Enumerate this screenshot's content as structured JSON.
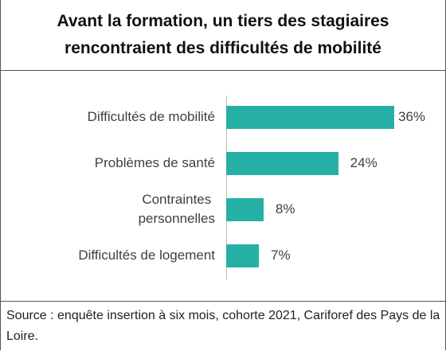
{
  "chart_data": {
    "type": "bar",
    "orientation": "horizontal",
    "title": "Avant la formation, un tiers des stagiaires rencontraient des difficultés de mobilité",
    "categories": [
      "Difficultés de mobilité",
      "Problèmes de santé",
      "Contraintes\npersonnelles",
      "Difficultés de logement"
    ],
    "values": [
      36,
      24,
      8,
      7
    ],
    "value_labels": [
      "36%",
      "24%",
      "8%",
      "7%"
    ],
    "color": "#26b0a5",
    "source": "Source : enquête insertion à six mois, cohorte 2021, Cariforef des Pays de la Loire."
  }
}
